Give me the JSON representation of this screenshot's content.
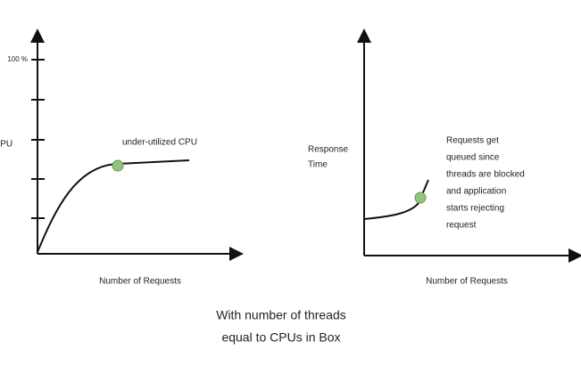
{
  "left_panel": {
    "y_tick_label": "100 %",
    "y_axis_label": "CPU",
    "annotation": "under-utilized CPU",
    "x_axis_label": "Number of Requests"
  },
  "right_panel": {
    "y_axis_label": [
      "Response",
      "Time"
    ],
    "annotation": [
      "Requests get",
      "queued since",
      "threads are blocked",
      "and application",
      "starts rejecting",
      "request"
    ],
    "x_axis_label": "Number of Requests"
  },
  "caption": [
    "With number of threads",
    "equal to CPUs in Box"
  ]
}
